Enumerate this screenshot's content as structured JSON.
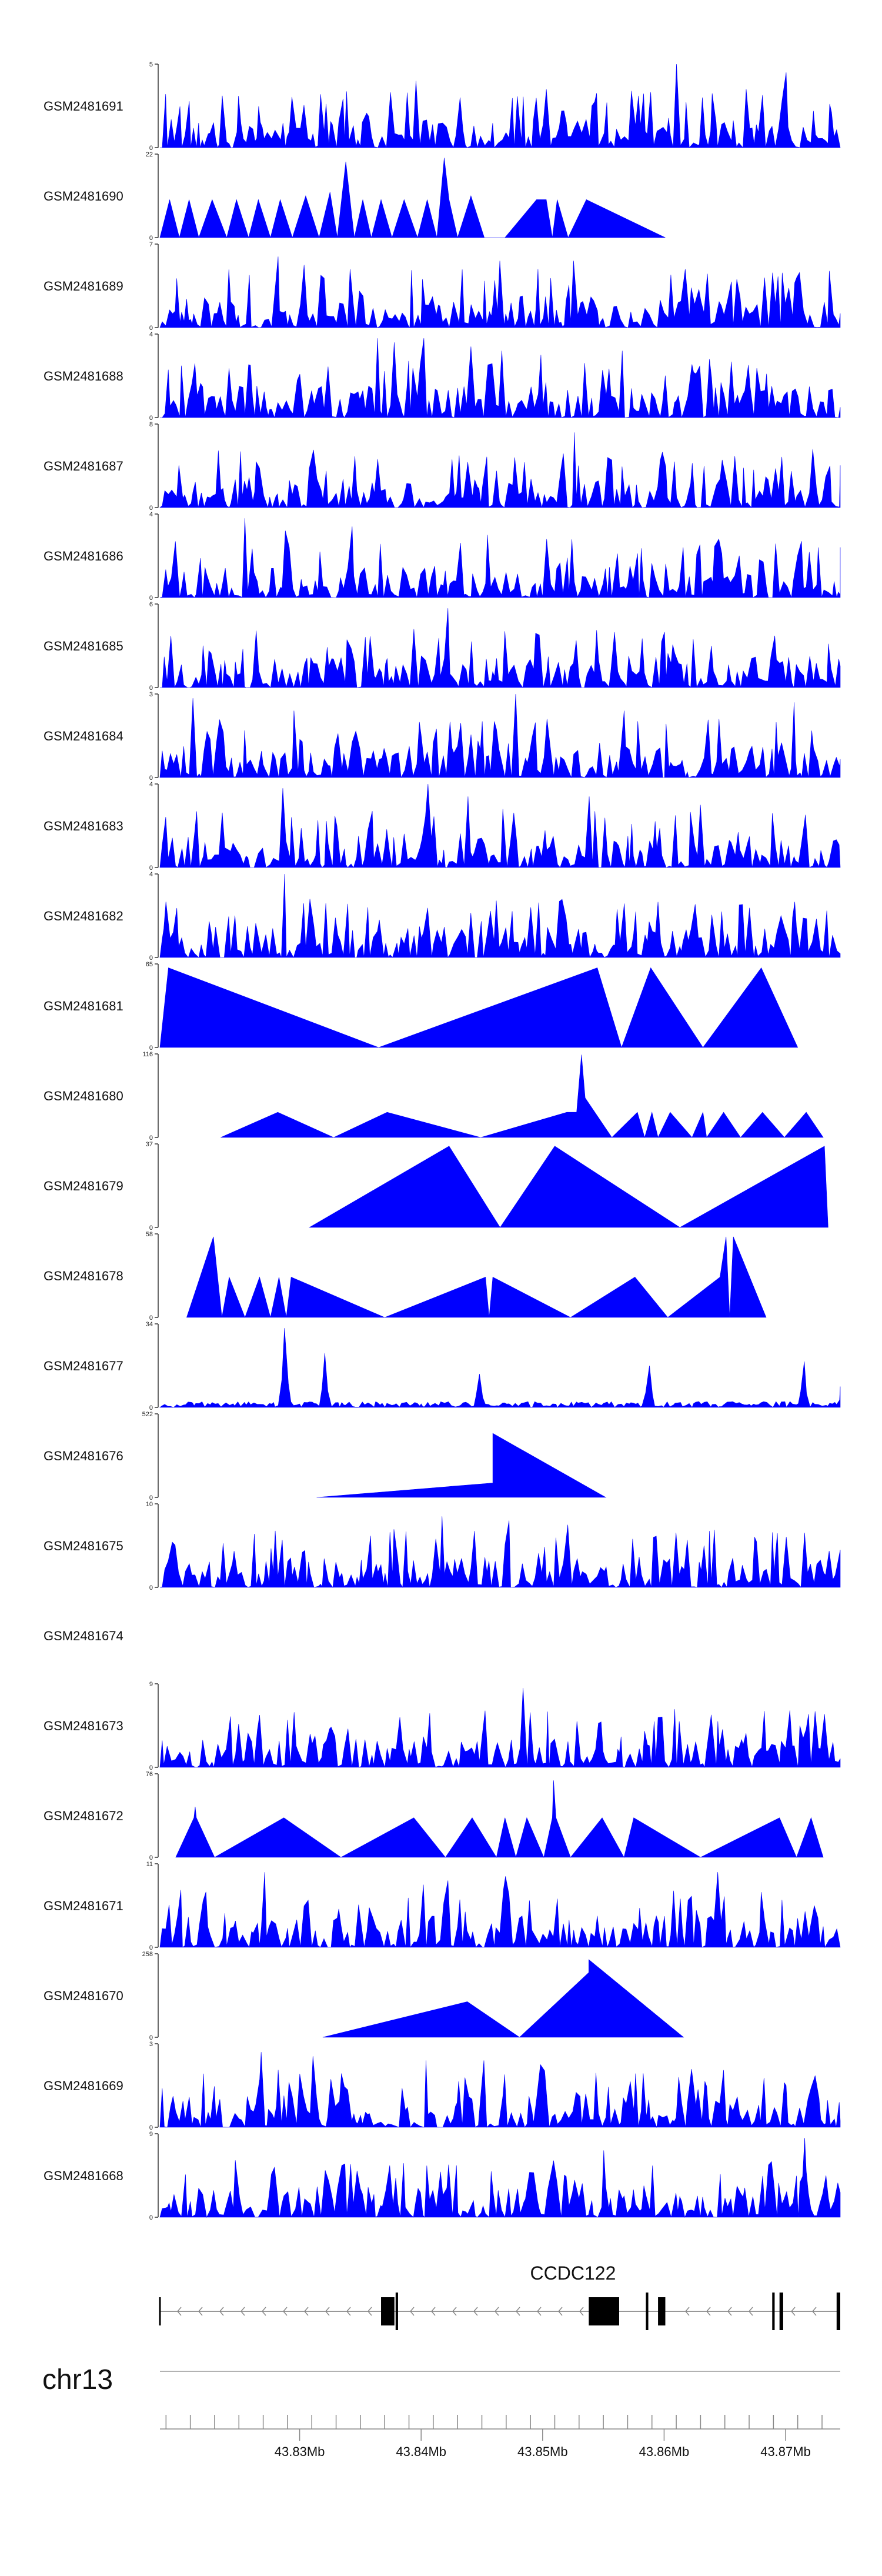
{
  "chart_data": {
    "type": "area",
    "chromosome": "chr13",
    "x_unit": "Mb",
    "x_range": [
      43.8185,
      43.8745
    ],
    "x_ticks": [
      {
        "value": 43.83,
        "label": "43.83Mb"
      },
      {
        "value": 43.84,
        "label": "43.84Mb"
      },
      {
        "value": 43.85,
        "label": "43.85Mb"
      },
      {
        "value": 43.86,
        "label": "43.86Mb"
      },
      {
        "value": 43.87,
        "label": "43.87Mb"
      }
    ],
    "gene": {
      "name": "CCDC122",
      "strand": "-",
      "start": 43.8185,
      "end": 43.8745,
      "exons": [
        {
          "start": 43.8367,
          "end": 43.8378
        },
        {
          "start": 43.8379,
          "end": 43.8381
        },
        {
          "start": 43.8538,
          "end": 43.8563
        },
        {
          "start": 43.8585,
          "end": 43.8587
        },
        {
          "start": 43.8595,
          "end": 43.8601
        },
        {
          "start": 43.8689,
          "end": 43.8691
        },
        {
          "start": 43.8695,
          "end": 43.8698
        },
        {
          "start": 43.8742,
          "end": 43.8745
        }
      ]
    },
    "tracks": [
      {
        "name": "GSM2481691",
        "ymax": 5,
        "style": "dense",
        "seed": 91,
        "peaks": [
          [
            43.8395,
            0.8
          ],
          [
            43.8432,
            0.6
          ],
          [
            43.8611,
            1.0
          ],
          [
            43.8541,
            0.5
          ],
          [
            43.8699,
            0.9
          ],
          [
            43.8632,
            0.6
          ],
          [
            43.8668,
            0.7
          ]
        ]
      },
      {
        "name": "GSM2481690",
        "ymax": 22,
        "style": "triangles",
        "points": [
          [
            43.8185,
            0
          ],
          [
            43.8193,
            10
          ],
          [
            43.8201,
            0
          ],
          [
            43.8209,
            10
          ],
          [
            43.8217,
            0
          ],
          [
            43.8228,
            10
          ],
          [
            43.824,
            0
          ],
          [
            43.8248,
            10
          ],
          [
            43.8258,
            0
          ],
          [
            43.8266,
            10
          ],
          [
            43.8276,
            0
          ],
          [
            43.8284,
            10
          ],
          [
            43.8294,
            0
          ],
          [
            43.8305,
            11
          ],
          [
            43.8316,
            0
          ],
          [
            43.8325,
            12
          ],
          [
            43.8331,
            0
          ],
          [
            43.8338,
            20
          ],
          [
            43.8345,
            0
          ],
          [
            43.8352,
            10
          ],
          [
            43.8359,
            0
          ],
          [
            43.8367,
            10
          ],
          [
            43.8376,
            0
          ],
          [
            43.8386,
            10
          ],
          [
            43.8397,
            0
          ],
          [
            43.8405,
            10
          ],
          [
            43.8413,
            0
          ],
          [
            43.8419,
            21
          ],
          [
            43.8423,
            10
          ],
          [
            43.843,
            0
          ],
          [
            43.8441,
            11
          ],
          [
            43.8452,
            0
          ],
          [
            43.8469,
            0
          ],
          [
            43.8495,
            10
          ],
          [
            43.8503,
            10
          ],
          [
            43.8508,
            0
          ],
          [
            43.8512,
            10
          ],
          [
            43.8521,
            0
          ],
          [
            43.8536,
            10
          ],
          [
            43.8601,
            0
          ]
        ]
      },
      {
        "name": "GSM2481689",
        "ymax": 7,
        "style": "dense",
        "seed": 89,
        "peaks": [
          [
            43.8282,
            0.85
          ],
          [
            43.8304,
            0.75
          ],
          [
            43.8342,
            0.7
          ],
          [
            43.8466,
            0.8
          ],
          [
            43.8496,
            0.7
          ],
          [
            43.8527,
            0.8
          ],
          [
            43.8618,
            0.7
          ],
          [
            43.871,
            0.6
          ]
        ]
      },
      {
        "name": "GSM2481688",
        "ymax": 4,
        "style": "dense",
        "seed": 88,
        "peaks": [
          [
            43.8365,
            0.95
          ],
          [
            43.8378,
            0.9
          ],
          [
            43.8402,
            0.95
          ],
          [
            43.8441,
            0.85
          ],
          [
            43.8466,
            0.8
          ],
          [
            43.8499,
            0.75
          ],
          [
            43.8566,
            0.8
          ],
          [
            43.8638,
            0.7
          ]
        ]
      },
      {
        "name": "GSM2481687",
        "ymax": 8,
        "style": "dense",
        "seed": 87,
        "peaks": [
          [
            43.8526,
            0.9
          ],
          [
            43.8478,
            0.6
          ],
          [
            43.8554,
            0.6
          ],
          [
            43.8607,
            0.55
          ],
          [
            43.8735,
            0.5
          ]
        ]
      },
      {
        "name": "GSM2481686",
        "ymax": 4,
        "style": "dense",
        "seed": 86,
        "peaks": [
          [
            43.8254,
            0.95
          ],
          [
            43.8288,
            0.8
          ],
          [
            43.8343,
            0.85
          ],
          [
            43.8454,
            0.75
          ],
          [
            43.8503,
            0.7
          ],
          [
            43.8646,
            0.7
          ],
          [
            43.8727,
            0.6
          ]
        ]
      },
      {
        "name": "GSM2481685",
        "ymax": 6,
        "style": "dense",
        "seed": 85,
        "peaks": [
          [
            43.8421,
            0.95
          ],
          [
            43.8394,
            0.7
          ],
          [
            43.8494,
            0.65
          ],
          [
            43.8599,
            0.55
          ],
          [
            43.8639,
            0.5
          ]
        ]
      },
      {
        "name": "GSM2481684",
        "ymax": 3,
        "style": "dense",
        "seed": 84,
        "peaks": [
          [
            43.8212,
            0.95
          ],
          [
            43.8297,
            0.8
          ],
          [
            43.8478,
            1.0
          ],
          [
            43.8505,
            0.7
          ],
          [
            43.8566,
            0.8
          ],
          [
            43.8646,
            0.7
          ],
          [
            43.8706,
            0.9
          ]
        ]
      },
      {
        "name": "GSM2481683",
        "ymax": 4,
        "style": "dense",
        "seed": 83,
        "peaks": [
          [
            43.8285,
            0.95
          ],
          [
            43.8406,
            1.0
          ],
          [
            43.8439,
            0.85
          ],
          [
            43.8468,
            0.7
          ],
          [
            43.8538,
            0.85
          ],
          [
            43.8631,
            0.75
          ],
          [
            43.8689,
            0.65
          ]
        ]
      },
      {
        "name": "GSM2481682",
        "ymax": 4,
        "style": "dense",
        "seed": 82,
        "peaks": [
          [
            43.8287,
            1.0
          ],
          [
            43.8308,
            0.7
          ],
          [
            43.8356,
            0.6
          ],
          [
            43.8491,
            0.6
          ],
          [
            43.8576,
            0.55
          ],
          [
            43.8648,
            0.55
          ]
        ]
      },
      {
        "name": "GSM2481681",
        "ymax": 65,
        "style": "triangles",
        "points": [
          [
            43.8185,
            0
          ],
          [
            43.8192,
            62
          ],
          [
            43.8365,
            0
          ],
          [
            43.8545,
            62
          ],
          [
            43.8565,
            0
          ],
          [
            43.8589,
            62
          ],
          [
            43.8632,
            0
          ],
          [
            43.868,
            62
          ],
          [
            43.871,
            0
          ]
        ]
      },
      {
        "name": "GSM2481680",
        "ymax": 116,
        "style": "triangles",
        "points": [
          [
            43.8235,
            0
          ],
          [
            43.8282,
            35
          ],
          [
            43.8328,
            0
          ],
          [
            43.8372,
            35
          ],
          [
            43.8449,
            0
          ],
          [
            43.852,
            35
          ],
          [
            43.8528,
            35
          ],
          [
            43.8532,
            115
          ],
          [
            43.8535,
            55
          ],
          [
            43.8557,
            0
          ],
          [
            43.8578,
            35
          ],
          [
            43.8584,
            0
          ],
          [
            43.859,
            35
          ],
          [
            43.8595,
            0
          ],
          [
            43.8605,
            35
          ],
          [
            43.8623,
            0
          ],
          [
            43.8632,
            35
          ],
          [
            43.8635,
            0
          ],
          [
            43.8649,
            35
          ],
          [
            43.8663,
            0
          ],
          [
            43.8681,
            35
          ],
          [
            43.8699,
            0
          ],
          [
            43.8717,
            35
          ],
          [
            43.8731,
            0
          ]
        ]
      },
      {
        "name": "GSM2481679",
        "ymax": 37,
        "style": "triangles",
        "points": [
          [
            43.8308,
            0
          ],
          [
            43.8423,
            36
          ],
          [
            43.8465,
            0
          ],
          [
            43.851,
            36
          ],
          [
            43.8613,
            0
          ],
          [
            43.8732,
            36
          ],
          [
            43.8735,
            0
          ]
        ]
      },
      {
        "name": "GSM2481678",
        "ymax": 58,
        "style": "triangles",
        "points": [
          [
            43.8207,
            0
          ],
          [
            43.8229,
            56
          ],
          [
            43.8236,
            0
          ],
          [
            43.8242,
            28
          ],
          [
            43.8255,
            0
          ],
          [
            43.8267,
            28
          ],
          [
            43.8276,
            0
          ],
          [
            43.8283,
            28
          ],
          [
            43.8289,
            0
          ],
          [
            43.8293,
            28
          ],
          [
            43.837,
            0
          ],
          [
            43.8453,
            28
          ],
          [
            43.8456,
            0
          ],
          [
            43.8459,
            28
          ],
          [
            43.8523,
            0
          ],
          [
            43.8576,
            28
          ],
          [
            43.8603,
            0
          ],
          [
            43.8646,
            28
          ],
          [
            43.8651,
            56
          ],
          [
            43.8654,
            0
          ],
          [
            43.8657,
            56
          ],
          [
            43.8684,
            0
          ]
        ]
      },
      {
        "name": "GSM2481677",
        "ymax": 34,
        "style": "sparse",
        "seed": 77,
        "peaks": [
          [
            43.8289,
            0.95
          ],
          [
            43.8321,
            0.65
          ],
          [
            43.8449,
            0.4
          ],
          [
            43.8589,
            0.5
          ],
          [
            43.8716,
            0.55
          ],
          [
            43.8745,
            0.25
          ]
        ]
      },
      {
        "name": "GSM2481676",
        "ymax": 522,
        "style": "triangles",
        "points": [
          [
            43.8314,
            0
          ],
          [
            43.8459,
            90
          ],
          [
            43.8459,
            400
          ],
          [
            43.8552,
            0
          ]
        ]
      },
      {
        "name": "GSM2481675",
        "ymax": 10,
        "style": "dense",
        "seed": 75,
        "peaks": [
          [
            43.8417,
            0.85
          ],
          [
            43.8472,
            0.8
          ],
          [
            43.8521,
            0.75
          ],
          [
            43.8591,
            0.6
          ],
          [
            43.8633,
            0.5
          ],
          [
            43.8748,
            0.45
          ]
        ]
      },
      {
        "name": "GSM2481674",
        "ymax": null,
        "style": "empty"
      },
      {
        "name": "GSM2481673",
        "ymax": 9,
        "style": "dense",
        "seed": 73,
        "peaks": [
          [
            43.8485,
            0.95
          ],
          [
            43.8381,
            0.6
          ],
          [
            43.8529,
            0.55
          ],
          [
            43.8612,
            0.55
          ],
          [
            43.8711,
            0.5
          ]
        ]
      },
      {
        "name": "GSM2481672",
        "ymax": 76,
        "style": "triangles",
        "points": [
          [
            43.8198,
            0
          ],
          [
            43.8213,
            36
          ],
          [
            43.8214,
            46
          ],
          [
            43.8215,
            36
          ],
          [
            43.823,
            0
          ],
          [
            43.8287,
            36
          ],
          [
            43.8334,
            0
          ],
          [
            43.8394,
            36
          ],
          [
            43.842,
            0
          ],
          [
            43.8442,
            36
          ],
          [
            43.8462,
            0
          ],
          [
            43.8469,
            36
          ],
          [
            43.8478,
            0
          ],
          [
            43.8487,
            36
          ],
          [
            43.8501,
            0
          ],
          [
            43.8508,
            36
          ],
          [
            43.8509,
            70
          ],
          [
            43.8511,
            36
          ],
          [
            43.8523,
            0
          ],
          [
            43.8549,
            36
          ],
          [
            43.8567,
            0
          ],
          [
            43.8575,
            36
          ],
          [
            43.863,
            0
          ],
          [
            43.8695,
            36
          ],
          [
            43.8709,
            0
          ],
          [
            43.8721,
            36
          ],
          [
            43.8731,
            0
          ]
        ]
      },
      {
        "name": "GSM2481671",
        "ymax": 11,
        "style": "dense",
        "seed": 71,
        "peaks": [
          [
            43.827,
            0.9
          ],
          [
            43.8403,
            0.75
          ],
          [
            43.8421,
            0.8
          ],
          [
            43.847,
            0.85
          ],
          [
            43.8643,
            0.9
          ],
          [
            43.8723,
            0.5
          ]
        ]
      },
      {
        "name": "GSM2481670",
        "ymax": 258,
        "style": "triangles",
        "points": [
          [
            43.8319,
            0
          ],
          [
            43.8438,
            110
          ],
          [
            43.8481,
            0
          ],
          [
            43.8538,
            200
          ],
          [
            43.8538,
            240
          ],
          [
            43.8616,
            0
          ]
        ]
      },
      {
        "name": "GSM2481669",
        "ymax": 3,
        "style": "dense",
        "seed": 69,
        "peaks": [
          [
            43.8268,
            0.9
          ],
          [
            43.8312,
            0.85
          ],
          [
            43.8404,
            0.8
          ],
          [
            43.8451,
            0.8
          ],
          [
            43.8498,
            0.75
          ],
          [
            43.8543,
            0.65
          ],
          [
            43.8612,
            0.6
          ]
        ]
      },
      {
        "name": "GSM2481668",
        "ymax": 9,
        "style": "dense",
        "seed": 68,
        "peaks": [
          [
            43.8716,
            0.95
          ],
          [
            43.855,
            0.8
          ],
          [
            43.8457,
            0.55
          ],
          [
            43.8733,
            0.5
          ]
        ]
      }
    ]
  }
}
